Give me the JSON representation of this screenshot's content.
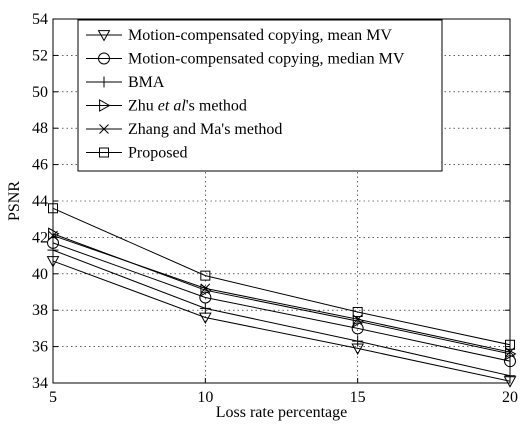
{
  "chart_data": {
    "type": "line",
    "xlabel": "Loss rate percentage",
    "ylabel": "PSNR",
    "x": [
      5,
      10,
      15,
      20
    ],
    "xlim": [
      5,
      20
    ],
    "ylim": [
      34,
      54
    ],
    "xticks": [
      "5",
      "10",
      "15",
      "20"
    ],
    "yticks": [
      "34",
      "36",
      "38",
      "40",
      "42",
      "44",
      "46",
      "48",
      "50",
      "52",
      "54"
    ],
    "grid": true,
    "legend_position": "top-left",
    "series": [
      {
        "name": "Motion-compensated copying, mean MV",
        "marker": "triangle-down",
        "values": [
          40.7,
          37.6,
          35.9,
          34.1
        ]
      },
      {
        "name": "Motion-compensated copying, median MV",
        "marker": "circle",
        "values": [
          41.7,
          38.7,
          37.0,
          35.2
        ]
      },
      {
        "name": "BMA",
        "marker": "plus",
        "values": [
          41.3,
          38.1,
          36.3,
          34.4
        ]
      },
      {
        "name_parts": [
          "Zhu ",
          "et al",
          "'s method"
        ],
        "marker": "triangle-right",
        "values": [
          42.2,
          39.1,
          37.4,
          35.6
        ]
      },
      {
        "name": "Zhang and Ma's method",
        "marker": "x",
        "values": [
          42.1,
          39.2,
          37.5,
          35.7
        ]
      },
      {
        "name": "Proposed",
        "marker": "square",
        "values": [
          43.6,
          39.9,
          37.9,
          36.1
        ]
      }
    ]
  }
}
